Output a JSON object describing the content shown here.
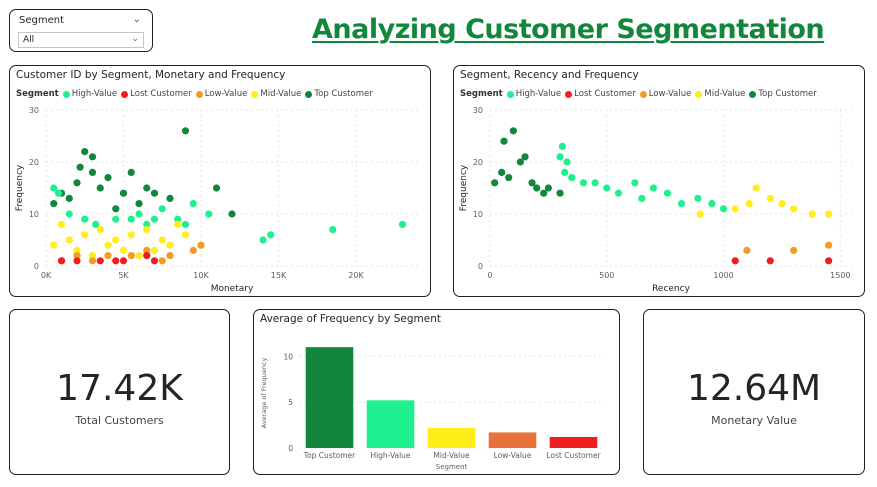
{
  "slicer": {
    "title": "Segment",
    "value": "All"
  },
  "page_title": "Analyzing Customer Segmentation",
  "colors": {
    "High-Value": "#1ef08f",
    "Lost Customer": "#f01e1e",
    "Low-Value": "#f59a23",
    "Mid-Value": "#ffee1a",
    "Top Customer": "#12873b"
  },
  "kpis": [
    {
      "value": "17.42K",
      "label": "Total Customers"
    },
    {
      "value": "12.64M",
      "label": "Monetary Value"
    }
  ],
  "chart_data": [
    {
      "type": "scatter",
      "title": "Customer ID by Segment, Monetary and Frequency",
      "xlabel": "Monetary",
      "ylabel": "Frequency",
      "legend_title": "Segment",
      "legend": [
        "High-Value",
        "Lost Customer",
        "Low-Value",
        "Mid-Value",
        "Top Customer"
      ],
      "legend_position": "top-left",
      "xlim": [
        0,
        24000
      ],
      "ylim": [
        0,
        30
      ],
      "x_ticks": [
        0,
        5000,
        10000,
        15000,
        20000
      ],
      "x_tick_labels": [
        "0K",
        "5K",
        "10K",
        "15K",
        "20K"
      ],
      "y_ticks": [
        0,
        10,
        20,
        30
      ],
      "grid": true,
      "series": [
        {
          "name": "Top Customer",
          "points": [
            [
              9000,
              26
            ],
            [
              2500,
              22
            ],
            [
              3000,
              21
            ],
            [
              11000,
              15
            ],
            [
              7000,
              14
            ],
            [
              4000,
              17
            ],
            [
              5500,
              18
            ],
            [
              3500,
              15
            ],
            [
              2000,
              16
            ],
            [
              12000,
              10
            ],
            [
              8000,
              13
            ],
            [
              6000,
              12
            ],
            [
              1000,
              14
            ],
            [
              1500,
              13
            ],
            [
              500,
              12
            ],
            [
              4500,
              11
            ],
            [
              5000,
              14
            ],
            [
              3000,
              18
            ],
            [
              2200,
              19
            ],
            [
              6500,
              15
            ]
          ]
        },
        {
          "name": "High-Value",
          "points": [
            [
              23000,
              8
            ],
            [
              18500,
              7
            ],
            [
              14500,
              6
            ],
            [
              14000,
              5
            ],
            [
              9500,
              12
            ],
            [
              8500,
              9
            ],
            [
              10500,
              10
            ],
            [
              7500,
              11
            ],
            [
              6000,
              10
            ],
            [
              4500,
              9
            ],
            [
              3200,
              8
            ],
            [
              2500,
              9
            ],
            [
              1500,
              10
            ],
            [
              7000,
              9
            ],
            [
              9000,
              8
            ],
            [
              500,
              15
            ],
            [
              800,
              14
            ],
            [
              6500,
              8
            ],
            [
              5500,
              9
            ]
          ]
        },
        {
          "name": "Mid-Value",
          "points": [
            [
              10000,
              4
            ],
            [
              9000,
              6
            ],
            [
              8500,
              8
            ],
            [
              7500,
              5
            ],
            [
              6500,
              7
            ],
            [
              5500,
              6
            ],
            [
              4500,
              5
            ],
            [
              3500,
              7
            ],
            [
              2500,
              6
            ],
            [
              1500,
              5
            ],
            [
              500,
              4
            ],
            [
              1000,
              8
            ],
            [
              2000,
              3
            ],
            [
              3000,
              2
            ],
            [
              4000,
              4
            ],
            [
              5000,
              3
            ],
            [
              6000,
              2
            ],
            [
              7000,
              3
            ],
            [
              8000,
              4
            ]
          ]
        },
        {
          "name": "Low-Value",
          "points": [
            [
              10000,
              4
            ],
            [
              9500,
              3
            ],
            [
              8000,
              2
            ],
            [
              6500,
              3
            ],
            [
              5500,
              2
            ],
            [
              3000,
              1
            ],
            [
              2000,
              2
            ],
            [
              1000,
              1
            ],
            [
              4000,
              2
            ],
            [
              7500,
              1
            ]
          ]
        },
        {
          "name": "Lost Customer",
          "points": [
            [
              7000,
              1
            ],
            [
              6500,
              2
            ],
            [
              5000,
              1
            ],
            [
              3500,
              1
            ],
            [
              2000,
              1
            ],
            [
              1000,
              1
            ],
            [
              4500,
              1
            ]
          ]
        }
      ]
    },
    {
      "type": "scatter",
      "title": "Segment, Recency and Frequency",
      "xlabel": "Recency",
      "ylabel": "Frequency",
      "legend_title": "Segment",
      "legend": [
        "High-Value",
        "Lost Customer",
        "Low-Value",
        "Mid-Value",
        "Top Customer"
      ],
      "legend_position": "top-left",
      "xlim": [
        0,
        1550
      ],
      "ylim": [
        0,
        30
      ],
      "x_ticks": [
        0,
        500,
        1000,
        1500
      ],
      "y_ticks": [
        0,
        10,
        20,
        30
      ],
      "grid": true,
      "series": [
        {
          "name": "Top Customer",
          "points": [
            [
              100,
              26
            ],
            [
              60,
              24
            ],
            [
              150,
              21
            ],
            [
              130,
              20
            ],
            [
              200,
              15
            ],
            [
              250,
              15
            ],
            [
              300,
              14
            ],
            [
              50,
              18
            ],
            [
              80,
              17
            ],
            [
              20,
              16
            ],
            [
              180,
              16
            ],
            [
              230,
              14
            ]
          ]
        },
        {
          "name": "High-Value",
          "points": [
            [
              310,
              23
            ],
            [
              300,
              21
            ],
            [
              330,
              20
            ],
            [
              320,
              18
            ],
            [
              400,
              16
            ],
            [
              500,
              15
            ],
            [
              620,
              16
            ],
            [
              700,
              15
            ],
            [
              760,
              14
            ],
            [
              890,
              13
            ],
            [
              950,
              12
            ],
            [
              1000,
              11
            ],
            [
              350,
              17
            ],
            [
              450,
              16
            ],
            [
              550,
              14
            ],
            [
              650,
              13
            ],
            [
              820,
              12
            ]
          ]
        },
        {
          "name": "Mid-Value",
          "points": [
            [
              1140,
              15
            ],
            [
              1200,
              13
            ],
            [
              1300,
              11
            ],
            [
              1450,
              10
            ],
            [
              1110,
              12
            ],
            [
              1050,
              11
            ],
            [
              900,
              10
            ],
            [
              1380,
              10
            ],
            [
              1250,
              12
            ]
          ]
        },
        {
          "name": "Low-Value",
          "points": [
            [
              1450,
              4
            ],
            [
              1300,
              3
            ],
            [
              1100,
              3
            ]
          ]
        },
        {
          "name": "Lost Customer",
          "points": [
            [
              1450,
              1
            ],
            [
              1200,
              1
            ],
            [
              1050,
              1
            ]
          ]
        }
      ]
    },
    {
      "type": "bar",
      "title": "Average of Frequency by Segment",
      "xlabel": "Segment",
      "ylabel": "Average of Frequency",
      "categories": [
        "Top Customer",
        "High-Value",
        "Mid-Value",
        "Low-Value",
        "Lost Customer"
      ],
      "values": [
        11,
        5.2,
        2.2,
        1.7,
        1.2
      ],
      "ylim": [
        0,
        12
      ],
      "y_ticks": [
        0,
        5,
        10
      ],
      "grid": true
    }
  ]
}
